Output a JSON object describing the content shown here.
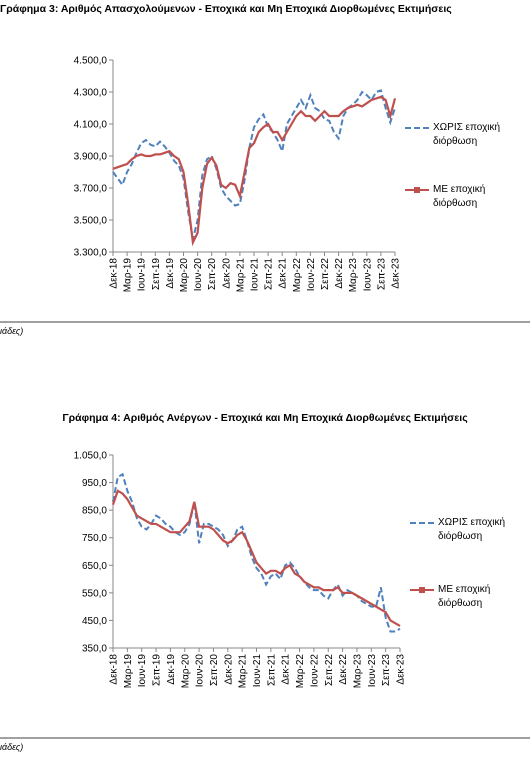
{
  "chart_data": [
    {
      "type": "line",
      "title": "Γράφημα 3: Αριθμός Απασχολούμενων - Εποχικά και Μη Εποχικά Διορθωμένες Εκτιμήσεις",
      "note": "ιάδες)",
      "categories": [
        "Δεκ-18",
        null,
        null,
        "Μαρ-19",
        null,
        null,
        "Ιουν-19",
        null,
        null,
        "Σεπ-19",
        null,
        null,
        "Δεκ-19",
        null,
        null,
        "Μαρ-20",
        null,
        null,
        "Ιουν-20",
        null,
        null,
        "Σεπ-20",
        null,
        null,
        "Δεκ-20",
        null,
        null,
        "Μαρ-21",
        null,
        null,
        "Ιουν-21",
        null,
        null,
        "Σεπ-21",
        null,
        null,
        "Δεκ-21",
        null,
        null,
        "Μαρ-22",
        null,
        null,
        "Ιουν-22",
        null,
        null,
        "Σεπ-22",
        null,
        null,
        "Δεκ-22",
        null,
        null,
        "Μαρ-23",
        null,
        null,
        "Ιουν-23",
        null,
        null,
        "Σεπ-23",
        null,
        null,
        "Δεκ-23"
      ],
      "series": [
        {
          "name": "ΧΩΡΙΣ εποχική διόρθωση",
          "color": "#4f81bd",
          "dashed": true,
          "values": [
            3800,
            3760,
            3720,
            3800,
            3850,
            3920,
            3980,
            4000,
            3970,
            3960,
            3990,
            3960,
            3920,
            3870,
            3840,
            3760,
            3550,
            3380,
            3500,
            3780,
            3880,
            3900,
            3820,
            3700,
            3650,
            3620,
            3590,
            3600,
            3750,
            3950,
            4080,
            4130,
            4160,
            4080,
            4050,
            4000,
            3930,
            4100,
            4150,
            4200,
            4250,
            4200,
            4280,
            4200,
            4180,
            4130,
            4120,
            4050,
            4010,
            4150,
            4200,
            4220,
            4250,
            4300,
            4280,
            4250,
            4300,
            4310,
            4200,
            4110,
            4200
          ]
        },
        {
          "name": "ΜΕ εποχική διόρθωση",
          "color": "#c0504d",
          "dashed": false,
          "values": [
            3820,
            3830,
            3840,
            3850,
            3880,
            3900,
            3910,
            3900,
            3900,
            3910,
            3910,
            3920,
            3930,
            3900,
            3880,
            3800,
            3600,
            3360,
            3420,
            3700,
            3850,
            3890,
            3840,
            3720,
            3700,
            3730,
            3720,
            3650,
            3800,
            3950,
            3980,
            4050,
            4080,
            4100,
            4050,
            4050,
            4000,
            4050,
            4100,
            4150,
            4180,
            4150,
            4150,
            4120,
            4150,
            4180,
            4150,
            4150,
            4150,
            4180,
            4200,
            4210,
            4220,
            4210,
            4230,
            4250,
            4260,
            4270,
            4250,
            4150,
            4260
          ]
        }
      ],
      "ylim": [
        3300,
        4500
      ],
      "yticks": [
        {
          "value": 3300,
          "label": "3.300,0"
        },
        {
          "value": 3500,
          "label": "3.500,0"
        },
        {
          "value": 3700,
          "label": "3.700,0"
        },
        {
          "value": 3900,
          "label": "3.900,0"
        },
        {
          "value": 4100,
          "label": "4.100,0"
        },
        {
          "value": 4300,
          "label": "4.300,0"
        },
        {
          "value": 4500,
          "label": "4.500,0"
        }
      ],
      "grid": false
    },
    {
      "type": "line",
      "title": "Γράφημα 4: Αριθμός Ανέργων - Εποχικά και Μη Εποχικά Διορθωμένες Εκτιμήσεις",
      "note": "ιάδες)",
      "categories": [
        "Δεκ-18",
        null,
        null,
        "Μαρ-19",
        null,
        null,
        "Ιουν-19",
        null,
        null,
        "Σεπ-19",
        null,
        null,
        "Δεκ-19",
        null,
        null,
        "Μαρ-20",
        null,
        null,
        "Ιουν-20",
        null,
        null,
        "Σεπ-20",
        null,
        null,
        "Δεκ-20",
        null,
        null,
        "Μαρ-21",
        null,
        null,
        "Ιουν-21",
        null,
        null,
        "Σεπ-21",
        null,
        null,
        "Δεκ-21",
        null,
        null,
        "Μαρ-22",
        null,
        null,
        "Ιουν-22",
        null,
        null,
        "Σεπ-22",
        null,
        null,
        "Δεκ-22",
        null,
        null,
        "Μαρ-23",
        null,
        null,
        "Ιουν-23",
        null,
        null,
        "Σεπ-23",
        null,
        null,
        "Δεκ-23"
      ],
      "series": [
        {
          "name": "ΧΩΡΙΣ εποχική διόρθωση",
          "color": "#4f81bd",
          "dashed": true,
          "values": [
            880,
            970,
            980,
            920,
            880,
            820,
            790,
            780,
            800,
            830,
            820,
            800,
            790,
            770,
            760,
            770,
            800,
            880,
            730,
            800,
            800,
            790,
            780,
            760,
            720,
            740,
            780,
            790,
            740,
            680,
            640,
            620,
            580,
            610,
            620,
            600,
            650,
            660,
            640,
            610,
            590,
            570,
            560,
            560,
            540,
            530,
            560,
            580,
            540,
            560,
            550,
            540,
            520,
            510,
            500,
            500,
            570,
            460,
            410,
            410,
            420
          ]
        },
        {
          "name": "ΜΕ εποχική διόρθωση",
          "color": "#c0504d",
          "dashed": false,
          "values": [
            870,
            920,
            910,
            890,
            860,
            830,
            820,
            810,
            800,
            800,
            790,
            780,
            770,
            770,
            770,
            790,
            810,
            880,
            790,
            790,
            790,
            780,
            760,
            740,
            730,
            740,
            760,
            770,
            740,
            700,
            660,
            640,
            620,
            630,
            630,
            620,
            640,
            650,
            620,
            610,
            590,
            580,
            570,
            570,
            560,
            560,
            560,
            570,
            550,
            550,
            550,
            540,
            530,
            520,
            510,
            500,
            490,
            480,
            450,
            440,
            430
          ]
        }
      ],
      "ylim": [
        350,
        1050
      ],
      "yticks": [
        {
          "value": 350,
          "label": "350,0"
        },
        {
          "value": 450,
          "label": "450,0"
        },
        {
          "value": 550,
          "label": "550,0"
        },
        {
          "value": 650,
          "label": "650,0"
        },
        {
          "value": 750,
          "label": "750,0"
        },
        {
          "value": 850,
          "label": "850,0"
        },
        {
          "value": 950,
          "label": "950,0"
        },
        {
          "value": 1050,
          "label": "1.050,0"
        }
      ],
      "grid": false
    }
  ]
}
